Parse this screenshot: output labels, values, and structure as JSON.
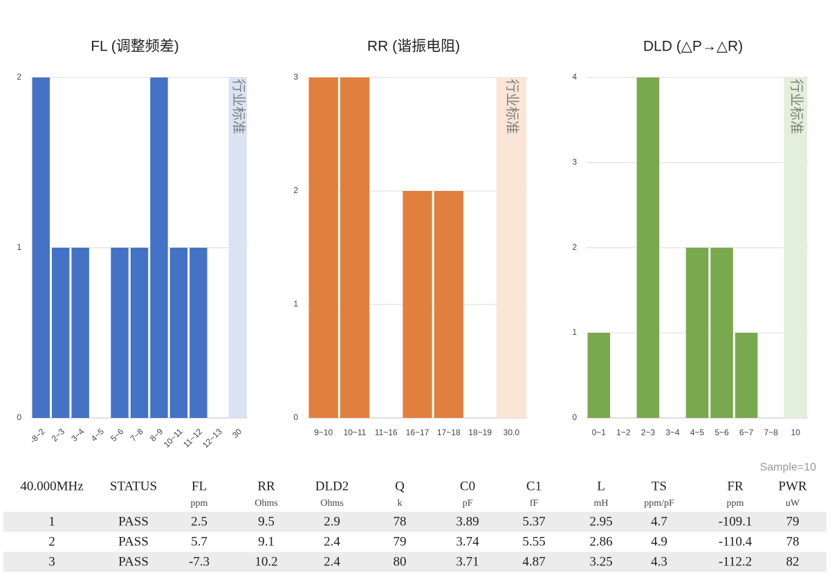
{
  "chart_data": [
    {
      "type": "bar",
      "title": "FL (调整频差)",
      "categories": [
        "-8~2",
        "2~3",
        "3~4",
        "4~5",
        "5~6",
        "7~8",
        "8~9",
        "10~11",
        "11~12",
        "12~13",
        "30"
      ],
      "series": [
        {
          "color": "#4472c4",
          "values": [
            2,
            1,
            1,
            0,
            1,
            1,
            2,
            1,
            1,
            0,
            null
          ]
        },
        {
          "name": "行业标准",
          "color": "#dae3f3",
          "values": [
            null,
            null,
            null,
            null,
            null,
            null,
            null,
            null,
            null,
            null,
            2
          ]
        }
      ],
      "ylim": [
        0,
        2
      ],
      "yticks": [
        0,
        1,
        2
      ],
      "grid": true
    },
    {
      "type": "bar",
      "title": "RR (谐振电阻)",
      "categories": [
        "9~10",
        "10~11",
        "11~16",
        "16~17",
        "17~18",
        "18~19",
        "30.0"
      ],
      "series": [
        {
          "color": "#e07f3e",
          "values": [
            3,
            3,
            0,
            2,
            2,
            0,
            null
          ]
        },
        {
          "name": "行业标准",
          "color": "#fbe5d6",
          "values": [
            null,
            null,
            null,
            null,
            null,
            null,
            3
          ]
        }
      ],
      "ylim": [
        0,
        3
      ],
      "yticks": [
        0,
        1,
        2,
        3
      ],
      "grid": true
    },
    {
      "type": "bar",
      "title": "DLD (△P→△R)",
      "categories": [
        "0~1",
        "1~2",
        "2~3",
        "3~4",
        "4~5",
        "5~6",
        "6~7",
        "7~8",
        "10"
      ],
      "series": [
        {
          "color": "#78a94f",
          "values": [
            1,
            0,
            4,
            0,
            2,
            2,
            1,
            0,
            null
          ]
        },
        {
          "name": "行业标准",
          "color": "#e2efda",
          "values": [
            null,
            null,
            null,
            null,
            null,
            null,
            null,
            null,
            4
          ]
        }
      ],
      "ylim": [
        0,
        4
      ],
      "yticks": [
        0,
        1,
        2,
        3,
        4
      ],
      "grid": true
    }
  ],
  "sample_note": "Sample=10",
  "table": {
    "headers": [
      "40.000MHz",
      "STATUS",
      "FL",
      "RR",
      "DLD2",
      "Q",
      "C0",
      "C1",
      "L",
      "TS",
      "FR",
      "PWR"
    ],
    "units": [
      null,
      null,
      "ppm",
      "Ohms",
      "Ohms",
      "k",
      "pF",
      "fF",
      "mH",
      "ppm/pF",
      "ppm",
      "uW"
    ],
    "rows": [
      [
        1,
        "PASS",
        2.5,
        9.5,
        2.9,
        78,
        3.89,
        5.37,
        2.95,
        4.7,
        -109.1,
        79
      ],
      [
        2,
        "PASS",
        5.7,
        9.1,
        2.4,
        79,
        3.74,
        5.55,
        2.86,
        4.9,
        -110.4,
        78
      ],
      [
        3,
        "PASS",
        -7.3,
        10.2,
        2.4,
        80,
        3.71,
        4.87,
        3.25,
        4.3,
        -112.2,
        82
      ]
    ]
  }
}
